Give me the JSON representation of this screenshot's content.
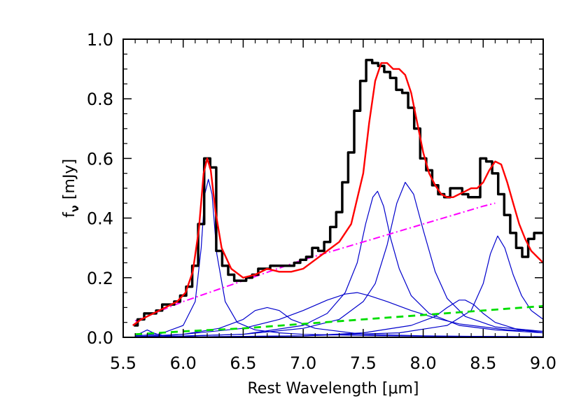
{
  "chart_data": {
    "type": "line",
    "title": "",
    "xlabel": "Rest Wavelength [μm]",
    "ylabel": "f_ν [mJy]",
    "ylabel_main": "f",
    "ylabel_sub": "ν",
    "ylabel_unit": "[mJy]",
    "xlim": [
      5.5,
      9.0
    ],
    "ylim": [
      0.0,
      1.0
    ],
    "grid": false,
    "x_ticks": [
      "5.5",
      "6.0",
      "6.5",
      "7.0",
      "7.5",
      "8.0",
      "8.5",
      "9.0"
    ],
    "y_ticks": [
      "0.0",
      "0.2",
      "0.4",
      "0.6",
      "0.8",
      "1.0"
    ],
    "series": [
      {
        "style": "step",
        "color": "#000000",
        "x": [
          5.59,
          5.65,
          5.7,
          5.75,
          5.8,
          5.85,
          5.9,
          5.95,
          6.0,
          6.05,
          6.1,
          6.15,
          6.2,
          6.25,
          6.3,
          6.35,
          6.4,
          6.45,
          6.5,
          6.55,
          6.6,
          6.65,
          6.7,
          6.75,
          6.8,
          6.85,
          6.9,
          6.95,
          7.0,
          7.05,
          7.1,
          7.15,
          7.2,
          7.25,
          7.3,
          7.35,
          7.4,
          7.45,
          7.5,
          7.55,
          7.6,
          7.65,
          7.7,
          7.75,
          7.8,
          7.85,
          7.9,
          7.95,
          8.0,
          8.05,
          8.1,
          8.15,
          8.2,
          8.25,
          8.3,
          8.35,
          8.4,
          8.45,
          8.5,
          8.55,
          8.6,
          8.65,
          8.7,
          8.75,
          8.8,
          8.85,
          8.9,
          8.95,
          9.0
        ],
        "y": [
          0.04,
          0.06,
          0.08,
          0.08,
          0.09,
          0.11,
          0.11,
          0.12,
          0.14,
          0.17,
          0.24,
          0.38,
          0.6,
          0.57,
          0.29,
          0.24,
          0.21,
          0.19,
          0.19,
          0.2,
          0.21,
          0.23,
          0.23,
          0.24,
          0.24,
          0.24,
          0.24,
          0.25,
          0.26,
          0.27,
          0.3,
          0.29,
          0.32,
          0.37,
          0.42,
          0.52,
          0.62,
          0.76,
          0.86,
          0.93,
          0.92,
          0.91,
          0.89,
          0.87,
          0.83,
          0.82,
          0.77,
          0.7,
          0.6,
          0.56,
          0.51,
          0.48,
          0.47,
          0.5,
          0.5,
          0.48,
          0.47,
          0.47,
          0.6,
          0.59,
          0.55,
          0.48,
          0.41,
          0.35,
          0.3,
          0.27,
          0.33,
          0.35,
          0.35
        ]
      },
      {
        "style": "line",
        "color": "#ff0000",
        "x": [
          5.58,
          5.65,
          5.75,
          5.85,
          5.95,
          6.02,
          6.08,
          6.13,
          6.17,
          6.2,
          6.23,
          6.27,
          6.32,
          6.4,
          6.5,
          6.6,
          6.7,
          6.8,
          6.9,
          7.0,
          7.1,
          7.2,
          7.3,
          7.4,
          7.5,
          7.55,
          7.6,
          7.65,
          7.7,
          7.75,
          7.8,
          7.85,
          7.9,
          7.95,
          8.0,
          8.05,
          8.1,
          8.15,
          8.2,
          8.25,
          8.3,
          8.35,
          8.4,
          8.45,
          8.5,
          8.55,
          8.6,
          8.65,
          8.7,
          8.75,
          8.8,
          8.85,
          8.9,
          8.95,
          9.0
        ],
        "y": [
          0.04,
          0.06,
          0.08,
          0.1,
          0.12,
          0.15,
          0.22,
          0.36,
          0.55,
          0.6,
          0.56,
          0.42,
          0.3,
          0.23,
          0.2,
          0.21,
          0.23,
          0.22,
          0.22,
          0.23,
          0.26,
          0.29,
          0.32,
          0.38,
          0.55,
          0.72,
          0.86,
          0.92,
          0.92,
          0.9,
          0.9,
          0.88,
          0.82,
          0.72,
          0.62,
          0.55,
          0.51,
          0.48,
          0.47,
          0.47,
          0.48,
          0.49,
          0.5,
          0.5,
          0.52,
          0.56,
          0.59,
          0.58,
          0.52,
          0.45,
          0.38,
          0.33,
          0.29,
          0.27,
          0.25
        ]
      },
      {
        "style": "dashdot",
        "color": "#ff00ff",
        "x": [
          5.6,
          6.0,
          6.5,
          7.0,
          7.5,
          8.0,
          8.5,
          8.6
        ],
        "y": [
          0.055,
          0.12,
          0.19,
          0.26,
          0.32,
          0.38,
          0.44,
          0.45
        ]
      },
      {
        "style": "dash",
        "color": "#00dd00",
        "x": [
          5.6,
          6.0,
          6.5,
          7.0,
          7.5,
          8.0,
          8.5,
          9.0
        ],
        "y": [
          0.01,
          0.02,
          0.03,
          0.045,
          0.06,
          0.075,
          0.09,
          0.105
        ]
      },
      {
        "style": "thin",
        "color": "#0000cc",
        "x": [
          5.6,
          5.65,
          5.7,
          5.75,
          5.8,
          5.9,
          6.0,
          6.5,
          7.0
        ],
        "y": [
          0.005,
          0.015,
          0.025,
          0.015,
          0.008,
          0.004,
          0.002,
          0.001,
          0.0
        ]
      },
      {
        "style": "thin",
        "color": "#0000cc",
        "x": [
          5.6,
          5.8,
          6.0,
          6.1,
          6.15,
          6.18,
          6.21,
          6.24,
          6.28,
          6.35,
          6.45,
          6.6,
          6.8,
          7.0,
          7.5,
          8.0,
          8.5,
          9.0
        ],
        "y": [
          0.005,
          0.01,
          0.04,
          0.12,
          0.3,
          0.48,
          0.53,
          0.48,
          0.28,
          0.12,
          0.05,
          0.025,
          0.015,
          0.01,
          0.006,
          0.004,
          0.003,
          0.002
        ]
      },
      {
        "style": "thin",
        "color": "#0000cc",
        "x": [
          5.6,
          6.0,
          6.3,
          6.5,
          6.6,
          6.7,
          6.8,
          6.9,
          7.1,
          7.5,
          8.0,
          8.5,
          9.0
        ],
        "y": [
          0.0,
          0.01,
          0.03,
          0.06,
          0.09,
          0.1,
          0.09,
          0.06,
          0.03,
          0.01,
          0.005,
          0.003,
          0.002
        ]
      },
      {
        "style": "thin",
        "color": "#0000cc",
        "x": [
          5.6,
          6.0,
          6.5,
          6.8,
          7.0,
          7.2,
          7.35,
          7.45,
          7.55,
          7.7,
          7.9,
          8.1,
          8.3,
          8.5,
          8.7,
          9.0
        ],
        "y": [
          0.002,
          0.01,
          0.03,
          0.06,
          0.09,
          0.125,
          0.145,
          0.15,
          0.14,
          0.12,
          0.09,
          0.065,
          0.045,
          0.035,
          0.025,
          0.02
        ]
      },
      {
        "style": "thin",
        "color": "#0000cc",
        "x": [
          5.6,
          6.5,
          7.0,
          7.2,
          7.35,
          7.45,
          7.52,
          7.58,
          7.62,
          7.67,
          7.73,
          7.8,
          7.9,
          8.05,
          8.3,
          8.6,
          9.0
        ],
        "y": [
          0.0,
          0.01,
          0.04,
          0.08,
          0.15,
          0.25,
          0.38,
          0.47,
          0.49,
          0.44,
          0.33,
          0.23,
          0.14,
          0.08,
          0.04,
          0.025,
          0.015
        ]
      },
      {
        "style": "thin",
        "color": "#0000cc",
        "x": [
          5.6,
          6.5,
          7.0,
          7.3,
          7.5,
          7.6,
          7.7,
          7.78,
          7.85,
          7.92,
          8.0,
          8.1,
          8.2,
          8.35,
          8.6,
          9.0
        ],
        "y": [
          0.0,
          0.01,
          0.03,
          0.06,
          0.12,
          0.18,
          0.31,
          0.45,
          0.52,
          0.48,
          0.36,
          0.22,
          0.13,
          0.07,
          0.035,
          0.02
        ]
      },
      {
        "style": "thin",
        "color": "#0000cc",
        "x": [
          5.6,
          7.0,
          7.5,
          7.9,
          8.1,
          8.2,
          8.3,
          8.35,
          8.42,
          8.5,
          8.6,
          8.8,
          9.0
        ],
        "y": [
          0.0,
          0.005,
          0.015,
          0.04,
          0.07,
          0.1,
          0.125,
          0.125,
          0.11,
          0.08,
          0.05,
          0.025,
          0.015
        ]
      },
      {
        "style": "thin",
        "color": "#0000cc",
        "x": [
          5.6,
          7.0,
          7.8,
          8.2,
          8.4,
          8.5,
          8.56,
          8.62,
          8.68,
          8.75,
          8.82,
          8.9,
          9.0
        ],
        "y": [
          0.0,
          0.005,
          0.015,
          0.04,
          0.09,
          0.18,
          0.28,
          0.34,
          0.3,
          0.21,
          0.14,
          0.09,
          0.06
        ]
      }
    ]
  }
}
